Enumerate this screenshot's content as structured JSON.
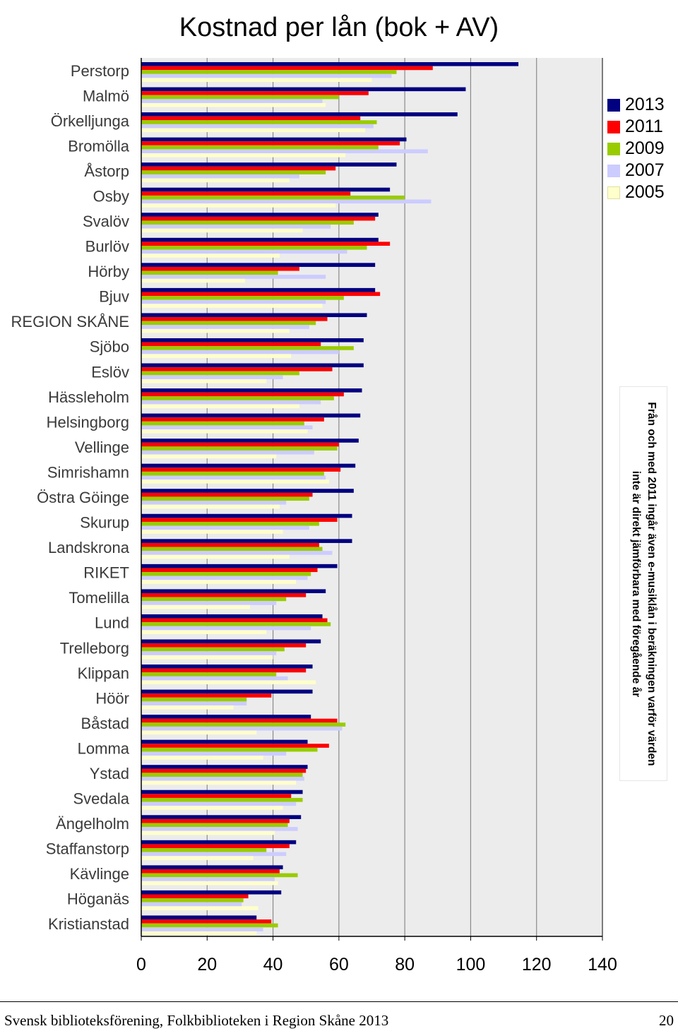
{
  "chart_data": {
    "type": "bar",
    "orientation": "horizontal",
    "title": "Kostnad per lån (bok + AV)",
    "xlabel": "",
    "ylabel": "",
    "xlim": [
      0,
      140
    ],
    "xticks": [
      "0",
      "20",
      "40",
      "60",
      "80",
      "100",
      "120",
      "140"
    ],
    "grid": true,
    "legend_position": "right",
    "categories": [
      "Perstorp",
      "Malmö",
      "Örkelljunga",
      "Bromölla",
      "Åstorp",
      "Osby",
      "Svalöv",
      "Burlöv",
      "Hörby",
      "Bjuv",
      "REGION SKÅNE",
      "Sjöbo",
      "Eslöv",
      "Hässleholm",
      "Helsingborg",
      "Vellinge",
      "Simrishamn",
      "Östra Göinge",
      "Skurup",
      "Landskrona",
      "RIKET",
      "Tomelilla",
      "Lund",
      "Trelleborg",
      "Klippan",
      "Höör",
      "Båstad",
      "Lomma",
      "Ystad",
      "Svedala",
      "Ängelholm",
      "Staffanstorp",
      "Kävlinge",
      "Höganäs",
      "Kristianstad"
    ],
    "series": [
      {
        "name": "2013",
        "color": "#000080",
        "values": [
          114.5,
          98.5,
          96,
          80.5,
          77.5,
          75.5,
          72,
          72,
          71,
          71,
          68.5,
          67.5,
          67.5,
          67,
          66.5,
          66,
          65,
          64.5,
          64,
          64,
          59.5,
          56,
          55,
          54.5,
          52,
          52,
          51.5,
          50.5,
          50.5,
          49,
          48.5,
          47,
          43,
          42.5,
          35
        ]
      },
      {
        "name": "2011",
        "color": "#ff0000",
        "values": [
          88.5,
          69,
          66.5,
          78.5,
          59,
          63.5,
          71,
          75.5,
          48,
          72.5,
          56.5,
          54.5,
          58,
          61.5,
          55.5,
          60,
          60.5,
          52,
          59.5,
          54,
          53.5,
          50,
          56.5,
          50,
          50,
          39.5,
          59.5,
          57,
          50,
          45.5,
          45,
          45,
          42,
          32.5,
          39.5
        ]
      },
      {
        "name": "2009",
        "color": "#99cc00",
        "values": [
          77.5,
          60,
          71.5,
          72,
          56,
          80,
          64.5,
          68.5,
          41.5,
          61.5,
          53,
          64.5,
          48,
          58.5,
          49.5,
          59.5,
          55.5,
          51,
          54,
          55,
          51.5,
          44,
          57.5,
          43.5,
          41,
          32,
          62,
          53.5,
          49,
          49,
          44.5,
          38,
          47.5,
          31,
          41.5
        ]
      },
      {
        "name": "2007",
        "color": "#ccccff",
        "values": [
          76,
          55,
          70.5,
          87,
          48,
          88,
          57.5,
          62.5,
          56,
          56,
          51,
          60,
          43,
          54.5,
          52,
          52.5,
          56,
          44,
          51,
          58,
          50.5,
          41,
          51.5,
          41,
          44.5,
          32,
          61,
          44,
          49.5,
          47,
          47.5,
          44,
          40.5,
          30.5,
          37
        ]
      },
      {
        "name": "2005",
        "color": "#ffffcc",
        "values": [
          70,
          56,
          68,
          62,
          45,
          59,
          49,
          42,
          31.5,
          55,
          45,
          45.5,
          38,
          48,
          50.5,
          41,
          57,
          42,
          43,
          45,
          47,
          33,
          38,
          40,
          53,
          28,
          35,
          37,
          47,
          43,
          40.5,
          34,
          41.5,
          35.5,
          35
        ]
      }
    ]
  },
  "note": "Från och med 2011 ingår även e-musiklån i beräkningen varför värden inte är direkt jämförbara med föregående år",
  "footer": {
    "text": "Svensk biblioteksförening, Folkbiblioteken i Region Skåne 2013",
    "page": "20"
  }
}
